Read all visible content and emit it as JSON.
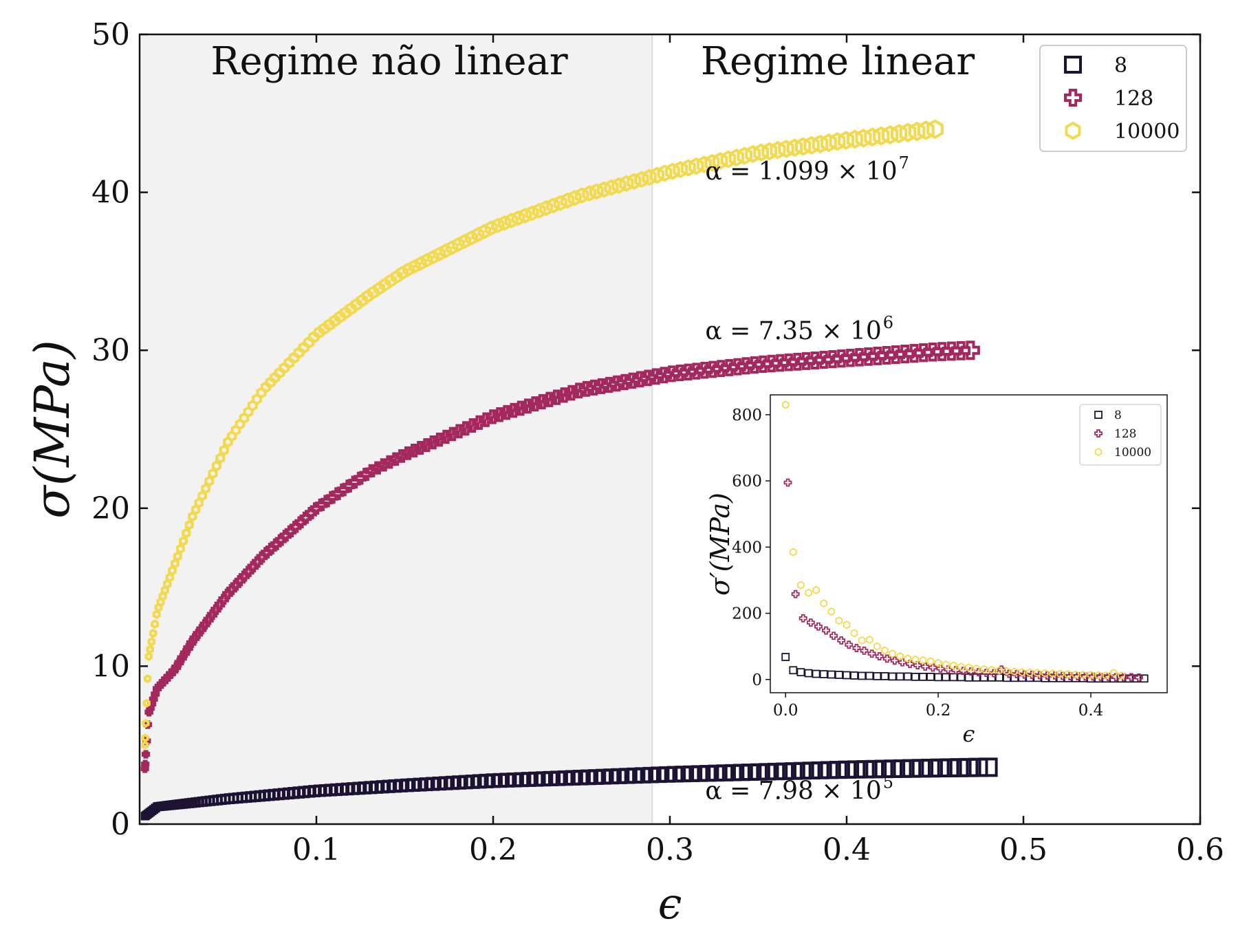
{
  "chart_data": [
    {
      "type": "scatter",
      "title": "",
      "xlabel": "ϵ",
      "ylabel": "σ(MPa)",
      "xlim": [
        0.0,
        0.6
      ],
      "ylim": [
        0,
        50
      ],
      "xticks": [
        0.1,
        0.2,
        0.3,
        0.4,
        0.5,
        0.6
      ],
      "xtick_labels": [
        "0.1",
        "0.2",
        "0.3",
        "0.4",
        "0.5",
        "0.6"
      ],
      "yticks": [
        0,
        10,
        20,
        30,
        40,
        50
      ],
      "ytick_labels": [
        "0",
        "10",
        "20",
        "30",
        "40",
        "50"
      ],
      "grid": false,
      "legend_position": "top-right",
      "shaded_region": {
        "x_start": 0.0,
        "x_end": 0.29,
        "color": "#f2f2f2"
      },
      "region_labels": {
        "left": "Regime não linear",
        "right": "Regime linear"
      },
      "annotations": [
        {
          "text": "α = 1.099 × 10",
          "exponent": "7",
          "x": 0.32,
          "y": 40.8
        },
        {
          "text": "α = 7.35 × 10",
          "exponent": "6",
          "x": 0.32,
          "y": 30.7
        },
        {
          "text": "α = 7.98 × 10",
          "exponent": "5",
          "x": 0.32,
          "y": 1.6
        }
      ],
      "series": [
        {
          "name": "8",
          "marker": "square",
          "color": "#1d1233",
          "x_start": 0.003,
          "x_end": 0.48,
          "count": 140,
          "y_at_x": [
            [
              0.003,
              0.5
            ],
            [
              0.01,
              1.1
            ],
            [
              0.05,
              1.6
            ],
            [
              0.1,
              2.1
            ],
            [
              0.15,
              2.45
            ],
            [
              0.2,
              2.75
            ],
            [
              0.25,
              2.95
            ],
            [
              0.3,
              3.15
            ],
            [
              0.35,
              3.3
            ],
            [
              0.4,
              3.45
            ],
            [
              0.45,
              3.55
            ],
            [
              0.48,
              3.6
            ]
          ]
        },
        {
          "name": "128",
          "marker": "cross",
          "color": "#a3285e",
          "x_start": 0.003,
          "x_end": 0.47,
          "count": 140,
          "y_at_x": [
            [
              0.003,
              3.5
            ],
            [
              0.005,
              7.0
            ],
            [
              0.01,
              8.6
            ],
            [
              0.02,
              9.8
            ],
            [
              0.03,
              11.6
            ],
            [
              0.05,
              14.6
            ],
            [
              0.07,
              17.0
            ],
            [
              0.1,
              20.0
            ],
            [
              0.13,
              22.3
            ],
            [
              0.15,
              23.4
            ],
            [
              0.2,
              25.8
            ],
            [
              0.25,
              27.5
            ],
            [
              0.3,
              28.5
            ],
            [
              0.35,
              29.1
            ],
            [
              0.4,
              29.5
            ],
            [
              0.45,
              29.9
            ],
            [
              0.47,
              30.0
            ]
          ]
        },
        {
          "name": "10000",
          "marker": "hexagon",
          "color": "#f2d94e",
          "x_start": 0.003,
          "x_end": 0.45,
          "count": 140,
          "y_at_x": [
            [
              0.003,
              5.0
            ],
            [
              0.005,
              10.5
            ],
            [
              0.01,
              13.5
            ],
            [
              0.02,
              16.5
            ],
            [
              0.03,
              19.5
            ],
            [
              0.05,
              24.2
            ],
            [
              0.07,
              27.5
            ],
            [
              0.1,
              31.0
            ],
            [
              0.13,
              33.5
            ],
            [
              0.15,
              35.0
            ],
            [
              0.2,
              37.8
            ],
            [
              0.25,
              39.8
            ],
            [
              0.3,
              41.3
            ],
            [
              0.35,
              42.5
            ],
            [
              0.4,
              43.3
            ],
            [
              0.45,
              44.0
            ]
          ]
        }
      ]
    },
    {
      "type": "scatter",
      "title": "",
      "xlabel": "ϵ",
      "ylabel": "σ′(MPa)",
      "xlim": [
        -0.02,
        0.5
      ],
      "ylim": [
        -40,
        860
      ],
      "xticks": [
        0.0,
        0.2,
        0.4
      ],
      "xtick_labels": [
        "0.0",
        "0.2",
        "0.4"
      ],
      "yticks": [
        0,
        200,
        400,
        600,
        800
      ],
      "ytick_labels": [
        "0",
        "200",
        "400",
        "600",
        "800"
      ],
      "grid": false,
      "legend_position": "top-right",
      "series": [
        {
          "name": "8",
          "marker": "square",
          "color": "#1d1233",
          "x": [
            0.0,
            0.01,
            0.02,
            0.03,
            0.04,
            0.05,
            0.06,
            0.07,
            0.08,
            0.09,
            0.1,
            0.11,
            0.12,
            0.13,
            0.14,
            0.15,
            0.16,
            0.17,
            0.18,
            0.19,
            0.2,
            0.21,
            0.22,
            0.23,
            0.24,
            0.25,
            0.26,
            0.27,
            0.28,
            0.29,
            0.3,
            0.31,
            0.32,
            0.33,
            0.34,
            0.35,
            0.36,
            0.37,
            0.38,
            0.39,
            0.4,
            0.41,
            0.42,
            0.43,
            0.44,
            0.45,
            0.46,
            0.47
          ],
          "y": [
            68,
            28,
            22,
            19,
            17,
            16,
            15,
            14,
            13,
            12,
            11,
            11,
            10,
            10,
            9,
            9,
            9,
            8,
            8,
            8,
            7,
            7,
            7,
            7,
            6,
            6,
            6,
            6,
            6,
            5,
            5,
            5,
            5,
            5,
            4,
            4,
            4,
            4,
            4,
            4,
            3,
            3,
            3,
            3,
            3,
            3,
            3,
            3
          ]
        },
        {
          "name": "128",
          "marker": "cross",
          "color": "#a3285e",
          "x": [
            0.003,
            0.013,
            0.023,
            0.033,
            0.043,
            0.053,
            0.063,
            0.073,
            0.083,
            0.093,
            0.103,
            0.113,
            0.123,
            0.133,
            0.143,
            0.153,
            0.163,
            0.173,
            0.183,
            0.193,
            0.203,
            0.213,
            0.223,
            0.233,
            0.243,
            0.253,
            0.263,
            0.273,
            0.283,
            0.293,
            0.303,
            0.313,
            0.323,
            0.333,
            0.343,
            0.353,
            0.363,
            0.373,
            0.383,
            0.393,
            0.403,
            0.413,
            0.423,
            0.433,
            0.443,
            0.453,
            0.463
          ],
          "y": [
            595,
            258,
            185,
            172,
            160,
            148,
            132,
            118,
            105,
            95,
            87,
            78,
            70,
            63,
            57,
            52,
            47,
            43,
            39,
            36,
            33,
            30,
            28,
            26,
            24,
            22,
            20,
            19,
            30,
            17,
            16,
            15,
            14,
            13,
            12,
            12,
            11,
            10,
            10,
            9,
            9,
            8,
            8,
            7,
            7,
            7,
            6
          ]
        },
        {
          "name": "10000",
          "marker": "hexagon",
          "color": "#f2d94e",
          "x": [
            0.0,
            0.01,
            0.02,
            0.03,
            0.04,
            0.05,
            0.06,
            0.07,
            0.08,
            0.09,
            0.1,
            0.11,
            0.12,
            0.13,
            0.14,
            0.15,
            0.16,
            0.17,
            0.18,
            0.19,
            0.2,
            0.21,
            0.22,
            0.23,
            0.24,
            0.25,
            0.26,
            0.27,
            0.28,
            0.29,
            0.3,
            0.31,
            0.32,
            0.33,
            0.34,
            0.35,
            0.36,
            0.37,
            0.38,
            0.39,
            0.4,
            0.41,
            0.42,
            0.43,
            0.44
          ],
          "y": [
            830,
            385,
            285,
            262,
            270,
            230,
            205,
            178,
            165,
            140,
            118,
            120,
            100,
            88,
            78,
            70,
            63,
            60,
            58,
            55,
            50,
            45,
            42,
            38,
            36,
            33,
            31,
            29,
            27,
            25,
            24,
            22,
            21,
            20,
            19,
            18,
            17,
            16,
            15,
            14,
            14,
            13,
            12,
            20,
            12
          ]
        }
      ]
    }
  ]
}
